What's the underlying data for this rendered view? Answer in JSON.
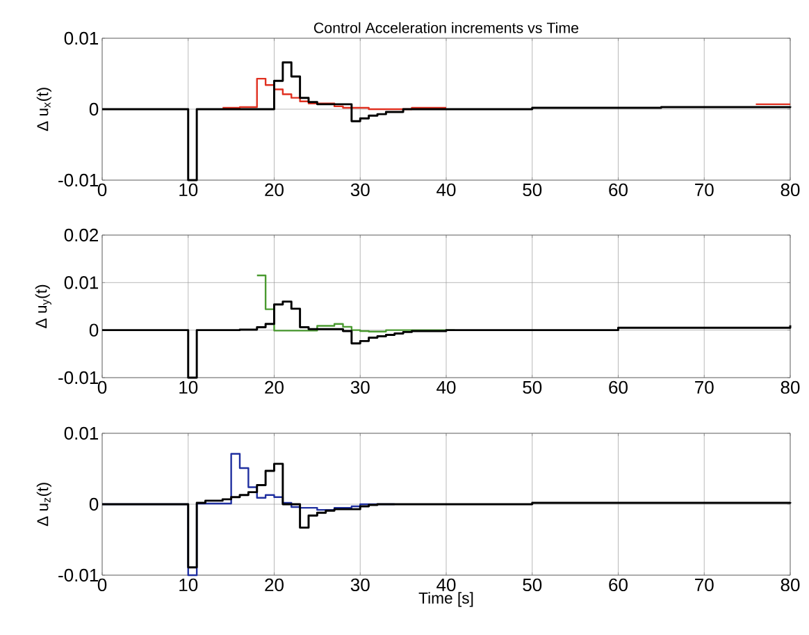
{
  "chart_data": [
    {
      "type": "step",
      "title": "Control Acceleration increments vs Time",
      "ylabel": "Δ u$_{x}$(t)",
      "xlim": [
        0,
        80
      ],
      "ylim": [
        -0.01,
        0.01
      ],
      "xticks": [
        0,
        10,
        20,
        30,
        40,
        50,
        60,
        70,
        80
      ],
      "yticks": [
        -0.01,
        0,
        0.01
      ],
      "grid": true,
      "series": [
        {
          "color": "#e03020",
          "x": [
            14,
            16,
            18,
            19,
            20,
            21,
            22,
            23,
            24,
            27,
            28,
            31,
            36,
            40,
            40.5,
            76,
            80
          ],
          "values": [
            0.0002,
            0.0003,
            0.0043,
            0.0034,
            0.0028,
            0.0021,
            0.0016,
            0.0011,
            0.0008,
            0.0004,
            0.0002,
            0,
            0.0002,
            0.0002,
            null,
            0.0007,
            0.0007
          ]
        },
        {
          "color": "#000000",
          "x": [
            0,
            10,
            11,
            20,
            21,
            22,
            23,
            24,
            25,
            29,
            30,
            31,
            32,
            33,
            35,
            50,
            65,
            80
          ],
          "values": [
            0,
            -0.01,
            0,
            0.004,
            0.0066,
            0.0046,
            0.0016,
            0.001,
            0.0007,
            -0.0017,
            -0.0013,
            -0.0009,
            -0.0007,
            -0.0004,
            0,
            0.0002,
            0.0003,
            0.0004
          ]
        }
      ]
    },
    {
      "type": "step",
      "ylabel": "Δ u$_{y}$(t)",
      "xlim": [
        0,
        80
      ],
      "ylim": [
        -0.01,
        0.02
      ],
      "xticks": [
        0,
        10,
        20,
        30,
        40,
        50,
        60,
        70,
        80
      ],
      "yticks": [
        -0.01,
        0,
        0.01,
        0.02
      ],
      "grid": true,
      "series": [
        {
          "color": "#4a9a30",
          "x": [
            18,
            19,
            20,
            25,
            27,
            28,
            29,
            30,
            31,
            33,
            41
          ],
          "values": [
            0.0115,
            0.0044,
            -0.0001,
            0.0009,
            0.0013,
            0.0007,
            0,
            -0.0002,
            -0.0003,
            0,
            0
          ]
        },
        {
          "color": "#000000",
          "x": [
            0,
            10,
            11,
            16,
            18,
            19,
            20,
            21,
            22,
            23,
            24,
            28,
            29,
            30,
            31,
            32,
            33,
            34,
            35,
            36,
            40,
            60,
            80
          ],
          "values": [
            0,
            -0.01,
            0,
            0.0001,
            0.0006,
            0.0013,
            0.0054,
            0.006,
            0.0045,
            0.0006,
            0.0002,
            -0.0002,
            -0.0028,
            -0.0023,
            -0.0016,
            -0.0013,
            -0.001,
            -0.0007,
            -0.0004,
            -0.0002,
            0,
            0.0005,
            0.001
          ]
        }
      ]
    },
    {
      "type": "step",
      "xlabel": "Time [s]",
      "ylabel": "Δ u$_{z}$(t)",
      "xlim": [
        0,
        80
      ],
      "ylim": [
        -0.01,
        0.01
      ],
      "xticks": [
        0,
        10,
        20,
        30,
        40,
        50,
        60,
        70,
        80
      ],
      "yticks": [
        -0.01,
        0,
        0.01
      ],
      "grid": true,
      "series": [
        {
          "color": "#2030a0",
          "x": [
            0,
            10,
            11,
            15,
            16,
            17,
            18,
            19,
            20,
            21,
            22,
            23,
            25,
            27,
            29,
            30,
            34
          ],
          "values": [
            0,
            -0.01,
            0.0001,
            0.0071,
            0.0051,
            0.0024,
            0.0009,
            0.0013,
            0.001,
            0.0002,
            -0.0004,
            -0.0005,
            -0.0008,
            -0.0005,
            -0.0003,
            0,
            0
          ]
        },
        {
          "color": "#000000",
          "x": [
            0,
            10,
            11,
            12,
            14,
            15,
            16,
            17,
            18,
            19,
            20,
            21,
            23,
            24,
            25,
            26,
            27,
            30,
            31,
            32,
            50,
            80
          ],
          "values": [
            0,
            -0.0089,
            0.0002,
            0.0005,
            0.0007,
            0.001,
            0.0013,
            0.0017,
            0.0027,
            0.0047,
            0.0057,
            0,
            -0.0033,
            -0.0016,
            -0.0012,
            -0.0009,
            -0.0007,
            -0.0003,
            -0.0001,
            0,
            0.0002,
            0.0003
          ]
        }
      ]
    }
  ]
}
